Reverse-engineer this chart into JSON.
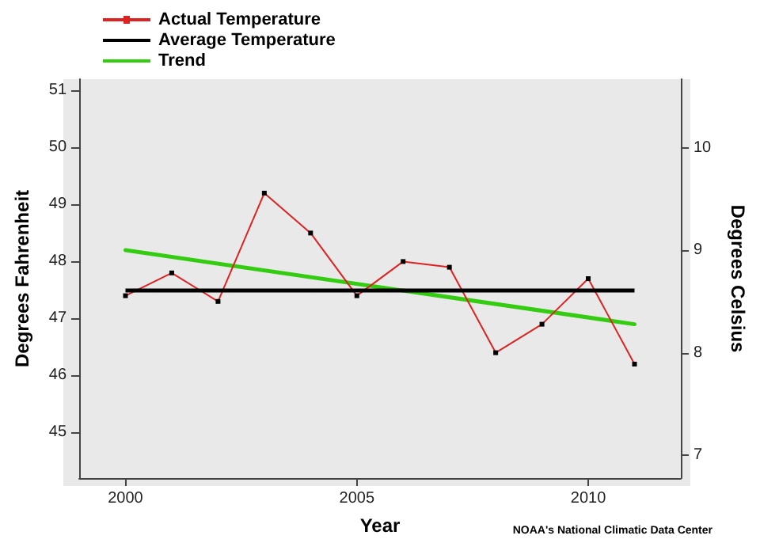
{
  "chart_data": {
    "type": "line",
    "xlabel": "Year",
    "ylabel": "Degrees Fahrenheit",
    "y2label": "Degrees Celsius",
    "x": [
      2000,
      2001,
      2002,
      2003,
      2004,
      2005,
      2006,
      2007,
      2008,
      2009,
      2010,
      2011
    ],
    "series": [
      {
        "name": "Actual Temperature",
        "color": "#dd2222",
        "values": [
          47.4,
          47.8,
          47.3,
          49.2,
          48.5,
          47.4,
          48.0,
          47.9,
          46.4,
          46.9,
          47.7,
          46.2
        ],
        "marker": "square"
      },
      {
        "name": "Trend",
        "color": "#33cc11",
        "x": [
          2000,
          2011
        ],
        "values": [
          48.2,
          46.9
        ],
        "marker": "none"
      }
    ],
    "xlim": [
      1999,
      2012
    ],
    "xticks": [
      2000,
      2005,
      2010
    ],
    "ylim": [
      44.2,
      51.2
    ],
    "yticks": [
      45,
      46,
      47,
      48,
      49,
      50,
      51
    ],
    "y2lim": [
      6.78,
      10.67
    ],
    "y2ticks": [
      7,
      8,
      9,
      10
    ],
    "ref_lines": [
      {
        "axis": "y",
        "value": 47.5,
        "label": "Average Temperature",
        "color": "#000000"
      }
    ],
    "legend": "top left",
    "grid": false,
    "annotations": [
      "NOAA's National Climatic Data Center"
    ]
  }
}
